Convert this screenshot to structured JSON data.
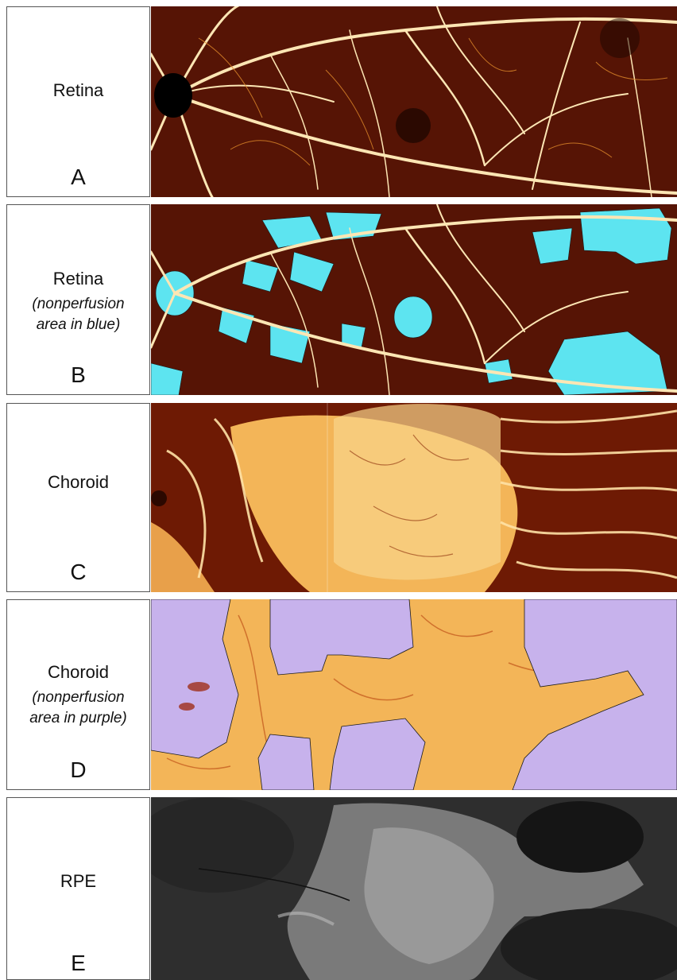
{
  "panels": [
    {
      "title": "Retina",
      "subtitle": "",
      "letter": "A"
    },
    {
      "title": "Retina",
      "subtitle": "(nonperfusion area in blue)",
      "letter": "B"
    },
    {
      "title": "Choroid",
      "subtitle": "",
      "letter": "C"
    },
    {
      "title": "Choroid",
      "subtitle": "(nonperfusion area in purple)",
      "letter": "D"
    },
    {
      "title": "RPE",
      "subtitle": "",
      "letter": "E"
    }
  ],
  "colors": {
    "retina_bg": "#3a0a02",
    "vessel": "#fde6b4",
    "vessel_mid": "#e08a2a",
    "nonperfusion_blue": "#5de4f0",
    "choroid_bg": "#f3b558",
    "nonperfusion_purple": "#c7b2ec",
    "rpe_bg": "#2e2e2e",
    "rpe_bright": "#a7a7a7"
  }
}
